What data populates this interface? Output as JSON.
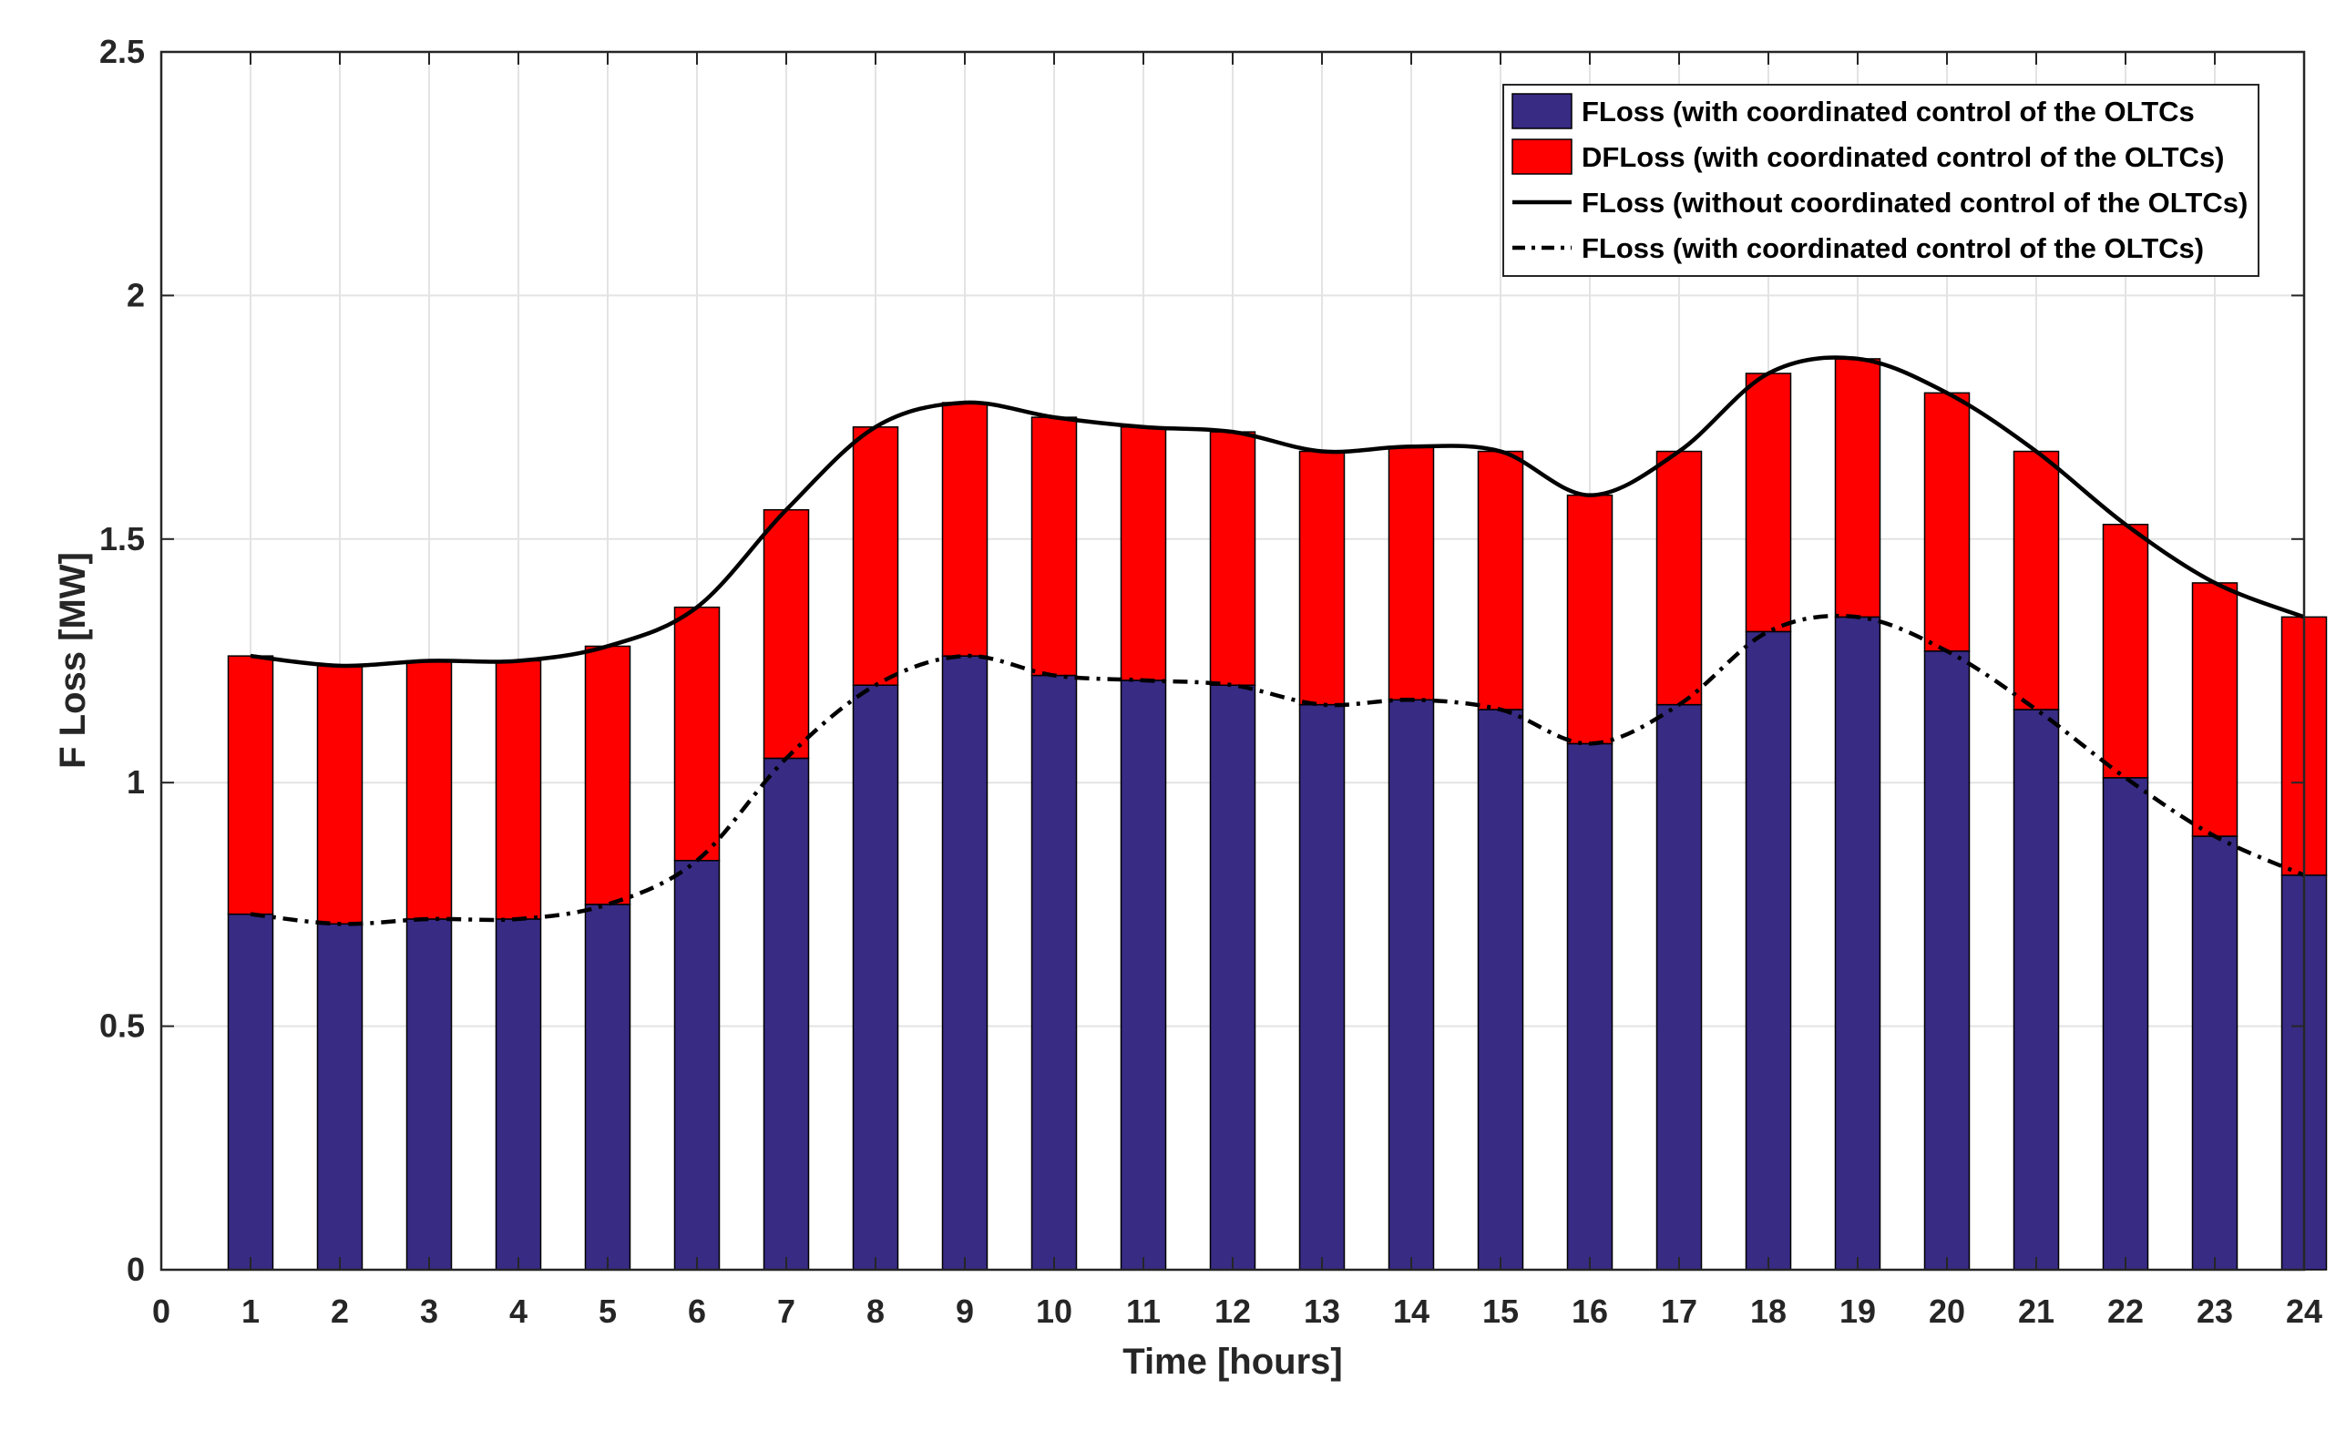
{
  "chart_data": {
    "type": "bar",
    "stacked": true,
    "title": "",
    "xlabel": "Time [hours]",
    "ylabel": "F Loss [MW]",
    "xlim": [
      0,
      24
    ],
    "ylim": [
      0,
      2.5
    ],
    "grid": true,
    "legend_position": "top-right",
    "x_ticks": [
      0,
      1,
      2,
      3,
      4,
      5,
      6,
      7,
      8,
      9,
      10,
      11,
      12,
      13,
      14,
      15,
      16,
      17,
      18,
      19,
      20,
      21,
      22,
      23,
      24
    ],
    "y_ticks": [
      {
        "value": 0,
        "label": "0"
      },
      {
        "value": 0.5,
        "label": "0.5"
      },
      {
        "value": 1,
        "label": "1"
      },
      {
        "value": 1.5,
        "label": "1.5"
      },
      {
        "value": 2,
        "label": "2"
      },
      {
        "value": 2.5,
        "label": "2.5"
      }
    ],
    "categories": [
      1,
      2,
      3,
      4,
      5,
      6,
      7,
      8,
      9,
      10,
      11,
      12,
      13,
      14,
      15,
      16,
      17,
      18,
      19,
      20,
      21,
      22,
      23,
      24
    ],
    "series": [
      {
        "name": "FLoss (with coordinated control of the OLTCs",
        "kind": "bar",
        "color": "#372B84",
        "values": [
          0.73,
          0.71,
          0.72,
          0.72,
          0.75,
          0.84,
          1.05,
          1.2,
          1.26,
          1.22,
          1.21,
          1.2,
          1.16,
          1.17,
          1.15,
          1.08,
          1.16,
          1.31,
          1.34,
          1.27,
          1.15,
          1.01,
          0.89,
          0.81
        ]
      },
      {
        "name": "DFLoss (with coordinated control of the OLTCs)",
        "kind": "bar",
        "color": "#FF0000",
        "values": [
          0.53,
          0.53,
          0.53,
          0.53,
          0.53,
          0.52,
          0.51,
          0.53,
          0.52,
          0.53,
          0.52,
          0.52,
          0.52,
          0.52,
          0.53,
          0.51,
          0.52,
          0.53,
          0.53,
          0.53,
          0.53,
          0.52,
          0.52,
          0.53
        ]
      },
      {
        "name": "FLoss (without coordinated control of the OLTCs)",
        "kind": "line",
        "style": "solid",
        "color": "#000000",
        "values": [
          1.26,
          1.24,
          1.25,
          1.25,
          1.28,
          1.36,
          1.56,
          1.73,
          1.78,
          1.75,
          1.73,
          1.72,
          1.68,
          1.69,
          1.68,
          1.59,
          1.68,
          1.84,
          1.87,
          1.8,
          1.68,
          1.53,
          1.41,
          1.34
        ]
      },
      {
        "name": "FLoss (with coordinated control of the OLTCs)",
        "kind": "line",
        "style": "dash-dot",
        "color": "#000000",
        "values": [
          0.73,
          0.71,
          0.72,
          0.72,
          0.75,
          0.84,
          1.05,
          1.2,
          1.26,
          1.22,
          1.21,
          1.2,
          1.16,
          1.17,
          1.15,
          1.08,
          1.16,
          1.31,
          1.34,
          1.27,
          1.15,
          1.01,
          0.89,
          0.81
        ]
      }
    ]
  }
}
